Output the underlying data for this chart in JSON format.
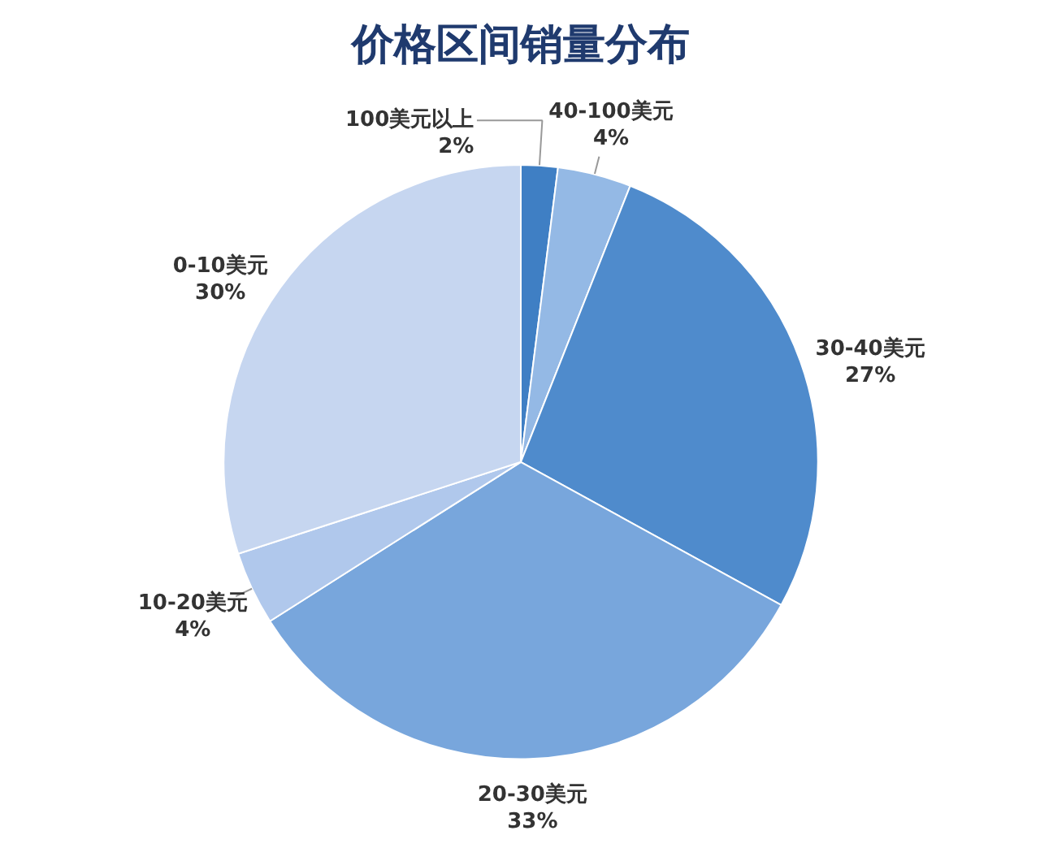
{
  "chart_data": {
    "type": "pie",
    "title": "价格区间销量分布",
    "categories": [
      "100美元以上",
      "40-100美元",
      "30-40美元",
      "20-30美元",
      "10-20美元",
      "0-10美元"
    ],
    "values": [
      2,
      4,
      27,
      33,
      4,
      30
    ],
    "value_labels": [
      "2%",
      "4%",
      "27%",
      "33%",
      "4%",
      "30%"
    ],
    "colors": [
      "#3f7fc4",
      "#94b9e5",
      "#4f8bcc",
      "#78a6dc",
      "#b0c8ec",
      "#c6d6f0"
    ],
    "legend": false
  }
}
